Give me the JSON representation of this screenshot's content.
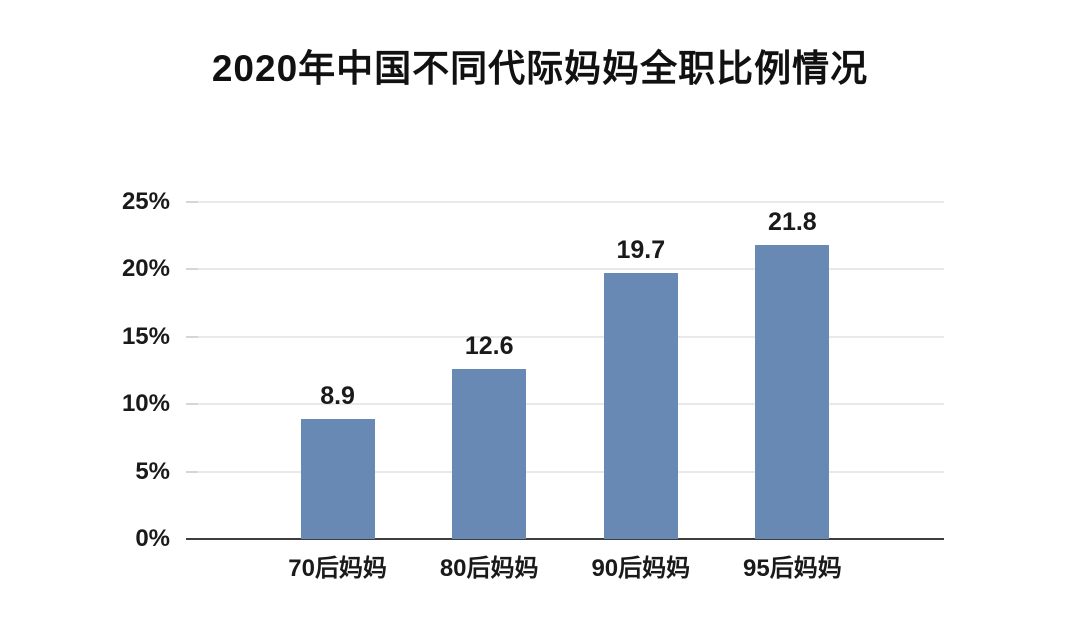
{
  "chart_data": {
    "type": "bar",
    "title": "2020年中国不同代际妈妈全职比例情况",
    "categories": [
      "70后妈妈",
      "80后妈妈",
      "90后妈妈",
      "95后妈妈"
    ],
    "values": [
      8.9,
      12.6,
      19.7,
      21.8
    ],
    "data_labels": [
      "8.9",
      "12.6",
      "19.7",
      "21.8"
    ],
    "xlabel": "",
    "ylabel": "",
    "ylim": [
      0,
      25
    ],
    "y_ticks": [
      {
        "label": "25%",
        "value": 25
      },
      {
        "label": "20%",
        "value": 20
      },
      {
        "label": "15%",
        "value": 15
      },
      {
        "label": "10%",
        "value": 10
      },
      {
        "label": "5%",
        "value": 5
      },
      {
        "label": "0%",
        "value": 0
      }
    ],
    "grid": true,
    "legend": "none",
    "colors": {
      "bar": "#6889B4",
      "gridline": "#e9e9e9",
      "tick_stub": "#d6d6d6",
      "axis_line": "#3d3d3d",
      "text": "#1a1a1a",
      "background": "#ffffff"
    }
  }
}
